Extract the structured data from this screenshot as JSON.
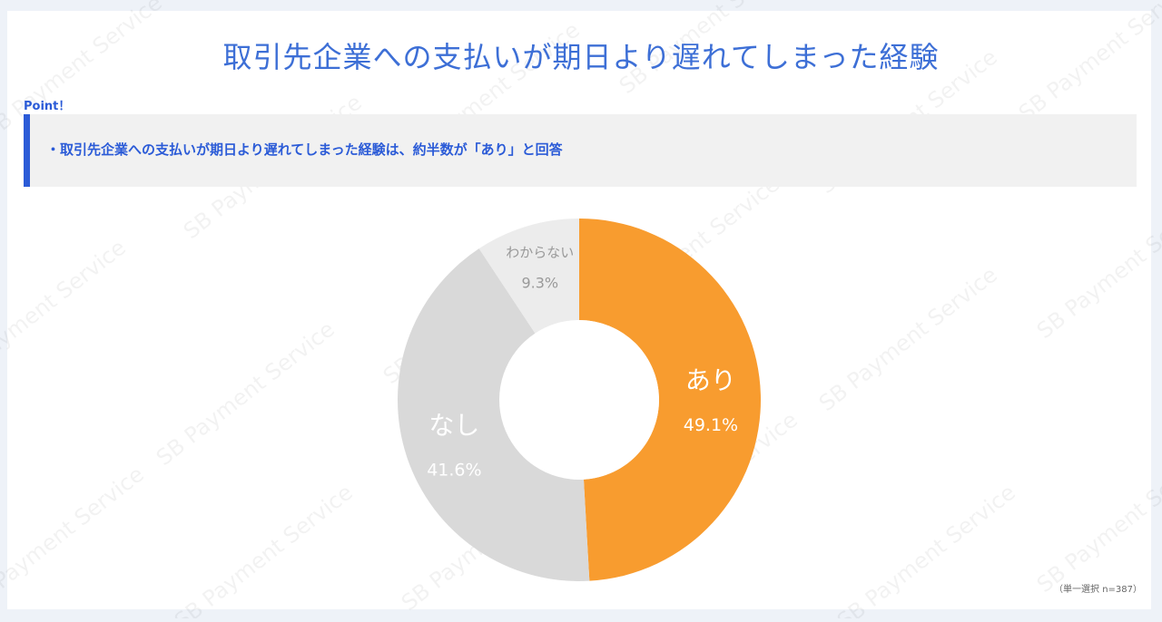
{
  "title": "取引先企業への支払いが期日より遅れてしまった経験",
  "point": {
    "label": "Point！",
    "text": "・取引先企業への支払いが期日より遅れてしまった経験は、約半数が「あり」と回答"
  },
  "footnote": "（単一選択 n=387）",
  "watermark": "SB Payment Service",
  "chart_data": {
    "type": "pie",
    "donut": true,
    "slices": [
      {
        "label": "あり",
        "percent_label": "49.1%",
        "value": 49.1,
        "color": "#f89c2f",
        "text_color": "#ffffff"
      },
      {
        "label": "なし",
        "percent_label": "41.6%",
        "value": 41.6,
        "color": "#d9d9d9",
        "text_color": "#ffffff"
      },
      {
        "label": "わからない",
        "percent_label": "9.3%",
        "value": 9.3,
        "color": "#ececec",
        "text_color": "#999999"
      }
    ]
  }
}
